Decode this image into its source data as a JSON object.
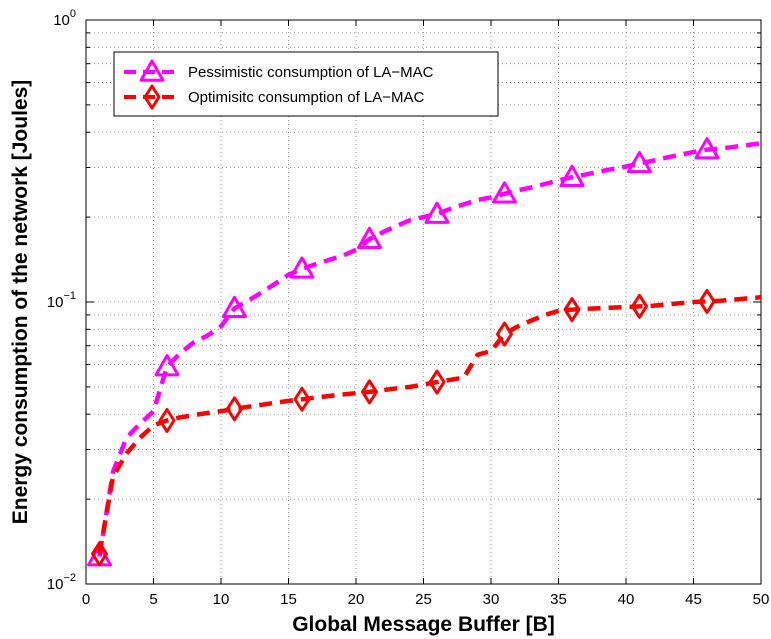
{
  "chart_data": {
    "type": "line",
    "title": "",
    "xlabel": "Global Message Buffer [B]",
    "ylabel": "Energy consumption of the network [Joules]",
    "xlim": [
      0,
      50
    ],
    "ylim": [
      0.01,
      1
    ],
    "yscale": "log",
    "grid": true,
    "legend_position": "top-left",
    "x_ticks": [
      0,
      5,
      10,
      15,
      20,
      25,
      30,
      35,
      40,
      45,
      50
    ],
    "x_tick_labels": [
      "0",
      "5",
      "10",
      "15",
      "20",
      "25",
      "30",
      "35",
      "40",
      "45",
      "50"
    ],
    "y_ticks": [
      {
        "value": 0.01,
        "base": "10",
        "exp": "−2"
      },
      {
        "value": 0.1,
        "base": "10",
        "exp": "−1"
      },
      {
        "value": 1,
        "base": "10",
        "exp": "0"
      }
    ],
    "series": [
      {
        "name": "Pessimistic consumption of LA−MAC",
        "color": "#ff00ff",
        "marker": "triangle",
        "x": [
          1,
          2,
          3,
          4,
          5,
          6,
          7,
          8,
          9,
          10,
          11,
          12,
          13,
          14,
          15,
          16,
          17,
          18,
          19,
          20,
          21,
          22,
          23,
          24,
          25,
          26,
          27,
          28,
          29,
          30,
          31,
          32,
          33,
          34,
          35,
          36,
          37,
          38,
          39,
          40,
          41,
          42,
          43,
          44,
          45,
          46,
          47,
          48,
          49,
          50
        ],
        "y": [
          0.0125,
          0.025,
          0.033,
          0.037,
          0.041,
          0.059,
          0.066,
          0.072,
          0.076,
          0.082,
          0.095,
          0.101,
          0.108,
          0.116,
          0.125,
          0.131,
          0.136,
          0.141,
          0.146,
          0.153,
          0.167,
          0.177,
          0.186,
          0.195,
          0.2,
          0.205,
          0.214,
          0.222,
          0.23,
          0.235,
          0.242,
          0.249,
          0.255,
          0.262,
          0.27,
          0.277,
          0.283,
          0.29,
          0.296,
          0.302,
          0.31,
          0.317,
          0.325,
          0.333,
          0.34,
          0.347,
          0.35,
          0.355,
          0.36,
          0.365
        ],
        "marker_x": [
          1,
          6,
          11,
          16,
          21,
          26,
          31,
          36,
          41,
          46
        ]
      },
      {
        "name": "Optimisitc consumption of LA−MAC",
        "color": "#ff0000",
        "marker": "diamond",
        "x": [
          1,
          2,
          3,
          4,
          5,
          6,
          7,
          8,
          9,
          10,
          11,
          12,
          13,
          14,
          15,
          16,
          17,
          18,
          19,
          20,
          21,
          22,
          23,
          24,
          25,
          26,
          27,
          28,
          29,
          30,
          31,
          32,
          33,
          34,
          35,
          36,
          37,
          38,
          39,
          40,
          41,
          42,
          43,
          44,
          45,
          46,
          47,
          48,
          49,
          50
        ],
        "y": [
          0.0128,
          0.024,
          0.029,
          0.033,
          0.0365,
          0.038,
          0.039,
          0.0397,
          0.0404,
          0.041,
          0.0418,
          0.0425,
          0.0432,
          0.0439,
          0.0446,
          0.0452,
          0.0458,
          0.0464,
          0.047,
          0.0475,
          0.048,
          0.0487,
          0.0494,
          0.05,
          0.051,
          0.052,
          0.053,
          0.054,
          0.065,
          0.067,
          0.077,
          0.082,
          0.086,
          0.09,
          0.093,
          0.094,
          0.0945,
          0.095,
          0.0955,
          0.096,
          0.0965,
          0.097,
          0.098,
          0.099,
          0.1,
          0.1005,
          0.101,
          0.102,
          0.103,
          0.104
        ],
        "marker_x": [
          1,
          6,
          11,
          16,
          21,
          26,
          31,
          36,
          41,
          46
        ]
      }
    ]
  }
}
